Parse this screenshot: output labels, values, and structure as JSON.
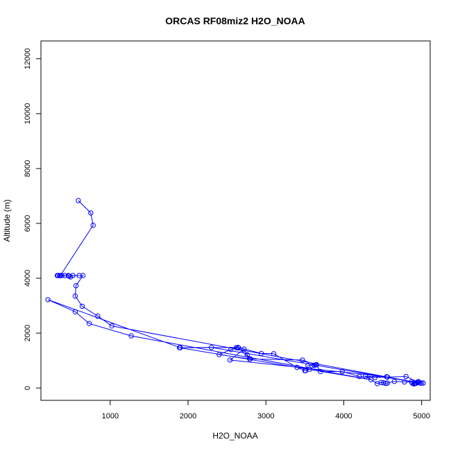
{
  "chart_data": {
    "type": "line",
    "title": "ORCAS RF08miz2 H2O_NOAA",
    "xlabel": "H2O_NOAA",
    "ylabel": "Altitude (m)",
    "xlim": [
      110,
      5110
    ],
    "ylim": [
      -450,
      12650
    ],
    "x_ticks": [
      1000,
      2000,
      3000,
      4000,
      5000
    ],
    "y_ticks": [
      0,
      2000,
      4000,
      6000,
      8000,
      10000,
      12000
    ],
    "x_tick_labels": [
      "1000",
      "2000",
      "3000",
      "4000",
      "5000"
    ],
    "y_tick_labels": [
      "0",
      "2000",
      "4000",
      "6000",
      "8000",
      "10000",
      "12000"
    ],
    "grid": false,
    "markers": "open circles",
    "color": "#0000ff",
    "series": [
      {
        "x": [
          590,
          750,
          780,
          360,
          320,
          330,
          350,
          380,
          420,
          460,
          470,
          490,
          520,
          600,
          650,
          560,
          550,
          640,
          840,
          1020,
          4980,
          2300,
          1900,
          200,
          550,
          730,
          1270,
          4350,
          1890,
          2640,
          2940,
          3100,
          3400,
          3500,
          3540,
          3620,
          3650,
          3700,
          3980,
          4200,
          4400,
          4560,
          4800,
          4950,
          5000,
          5020,
          4930,
          4880,
          4900,
          4910,
          4920,
          4930,
          4950,
          4960,
          4870,
          4780,
          4650,
          4560,
          4540,
          4510,
          4480,
          4430,
          4280,
          4550,
          2540,
          2720,
          2760,
          2800,
          2650,
          2620,
          2550,
          2400,
          2790,
          3470,
          3640,
          3560,
          3510
        ],
        "y": [
          6830,
          6380,
          5930,
          4100,
          4100,
          4100,
          4100,
          4100,
          4100,
          4100,
          4080,
          4050,
          4100,
          4100,
          4100,
          3730,
          3350,
          2980,
          2620,
          2260,
          180,
          1480,
          1470,
          3220,
          2780,
          2350,
          1900,
          300,
          1470,
          1480,
          1260,
          1250,
          750,
          630,
          820,
          830,
          850,
          600,
          600,
          420,
          380,
          400,
          420,
          220,
          180,
          180,
          180,
          180,
          150,
          160,
          170,
          180,
          200,
          230,
          230,
          220,
          240,
          180,
          170,
          190,
          200,
          160,
          430,
          410,
          1020,
          1420,
          1210,
          1060,
          1460,
          1470,
          1400,
          1220,
          1060,
          1020,
          840,
          680,
          630
        ]
      }
    ]
  }
}
